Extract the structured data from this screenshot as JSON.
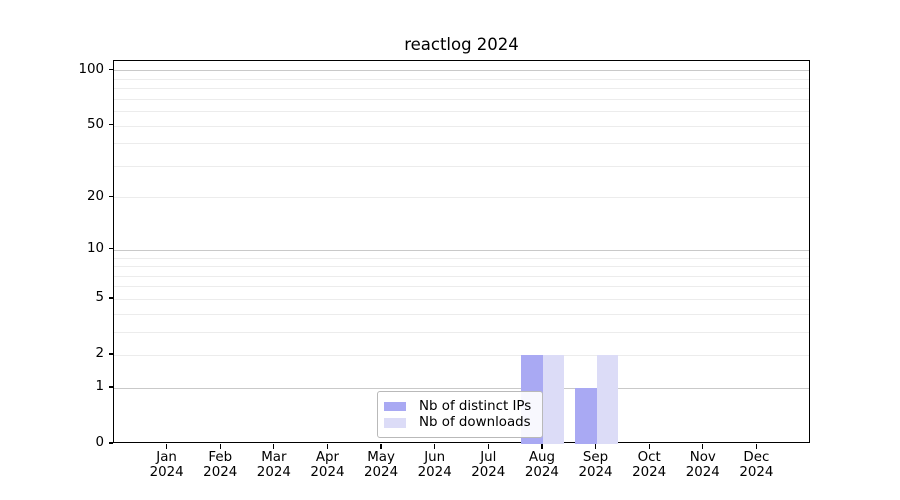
{
  "chart_data": {
    "type": "bar",
    "title": "reactlog 2024",
    "x": {
      "categories": [
        "Jan",
        "Feb",
        "Mar",
        "Apr",
        "May",
        "Jun",
        "Jul",
        "Aug",
        "Sep",
        "Oct",
        "Nov",
        "Dec"
      ],
      "year_label": "2024"
    },
    "y": {
      "scale": "log1p",
      "range": [
        0,
        100
      ],
      "tick_values": [
        0,
        1,
        2,
        5,
        10,
        20,
        50,
        100
      ],
      "major_gridlines": [
        1,
        10,
        100
      ],
      "minor_gridlines": [
        2,
        3,
        4,
        5,
        6,
        7,
        8,
        9,
        20,
        30,
        40,
        50,
        60,
        70,
        80,
        90
      ]
    },
    "series": [
      {
        "name": "Nb of distinct IPs",
        "color": "#a9a9f3",
        "values": [
          0,
          0,
          0,
          0,
          0,
          0,
          0,
          2,
          1,
          0,
          0,
          0
        ]
      },
      {
        "name": "Nb of downloads",
        "color": "#dcdcf7",
        "values": [
          0,
          0,
          0,
          0,
          0,
          0,
          0,
          2,
          2,
          0,
          0,
          0
        ]
      }
    ],
    "legend": {
      "position": "lower center",
      "entries": [
        "Nb of distinct IPs",
        "Nb of downloads"
      ]
    },
    "colors": {
      "major_grid": "#c9c9c9",
      "minor_grid": "#ececec",
      "axis": "#000000",
      "text": "#000000",
      "legend_border": "#b9b9b9",
      "background": "#ffffff"
    }
  }
}
